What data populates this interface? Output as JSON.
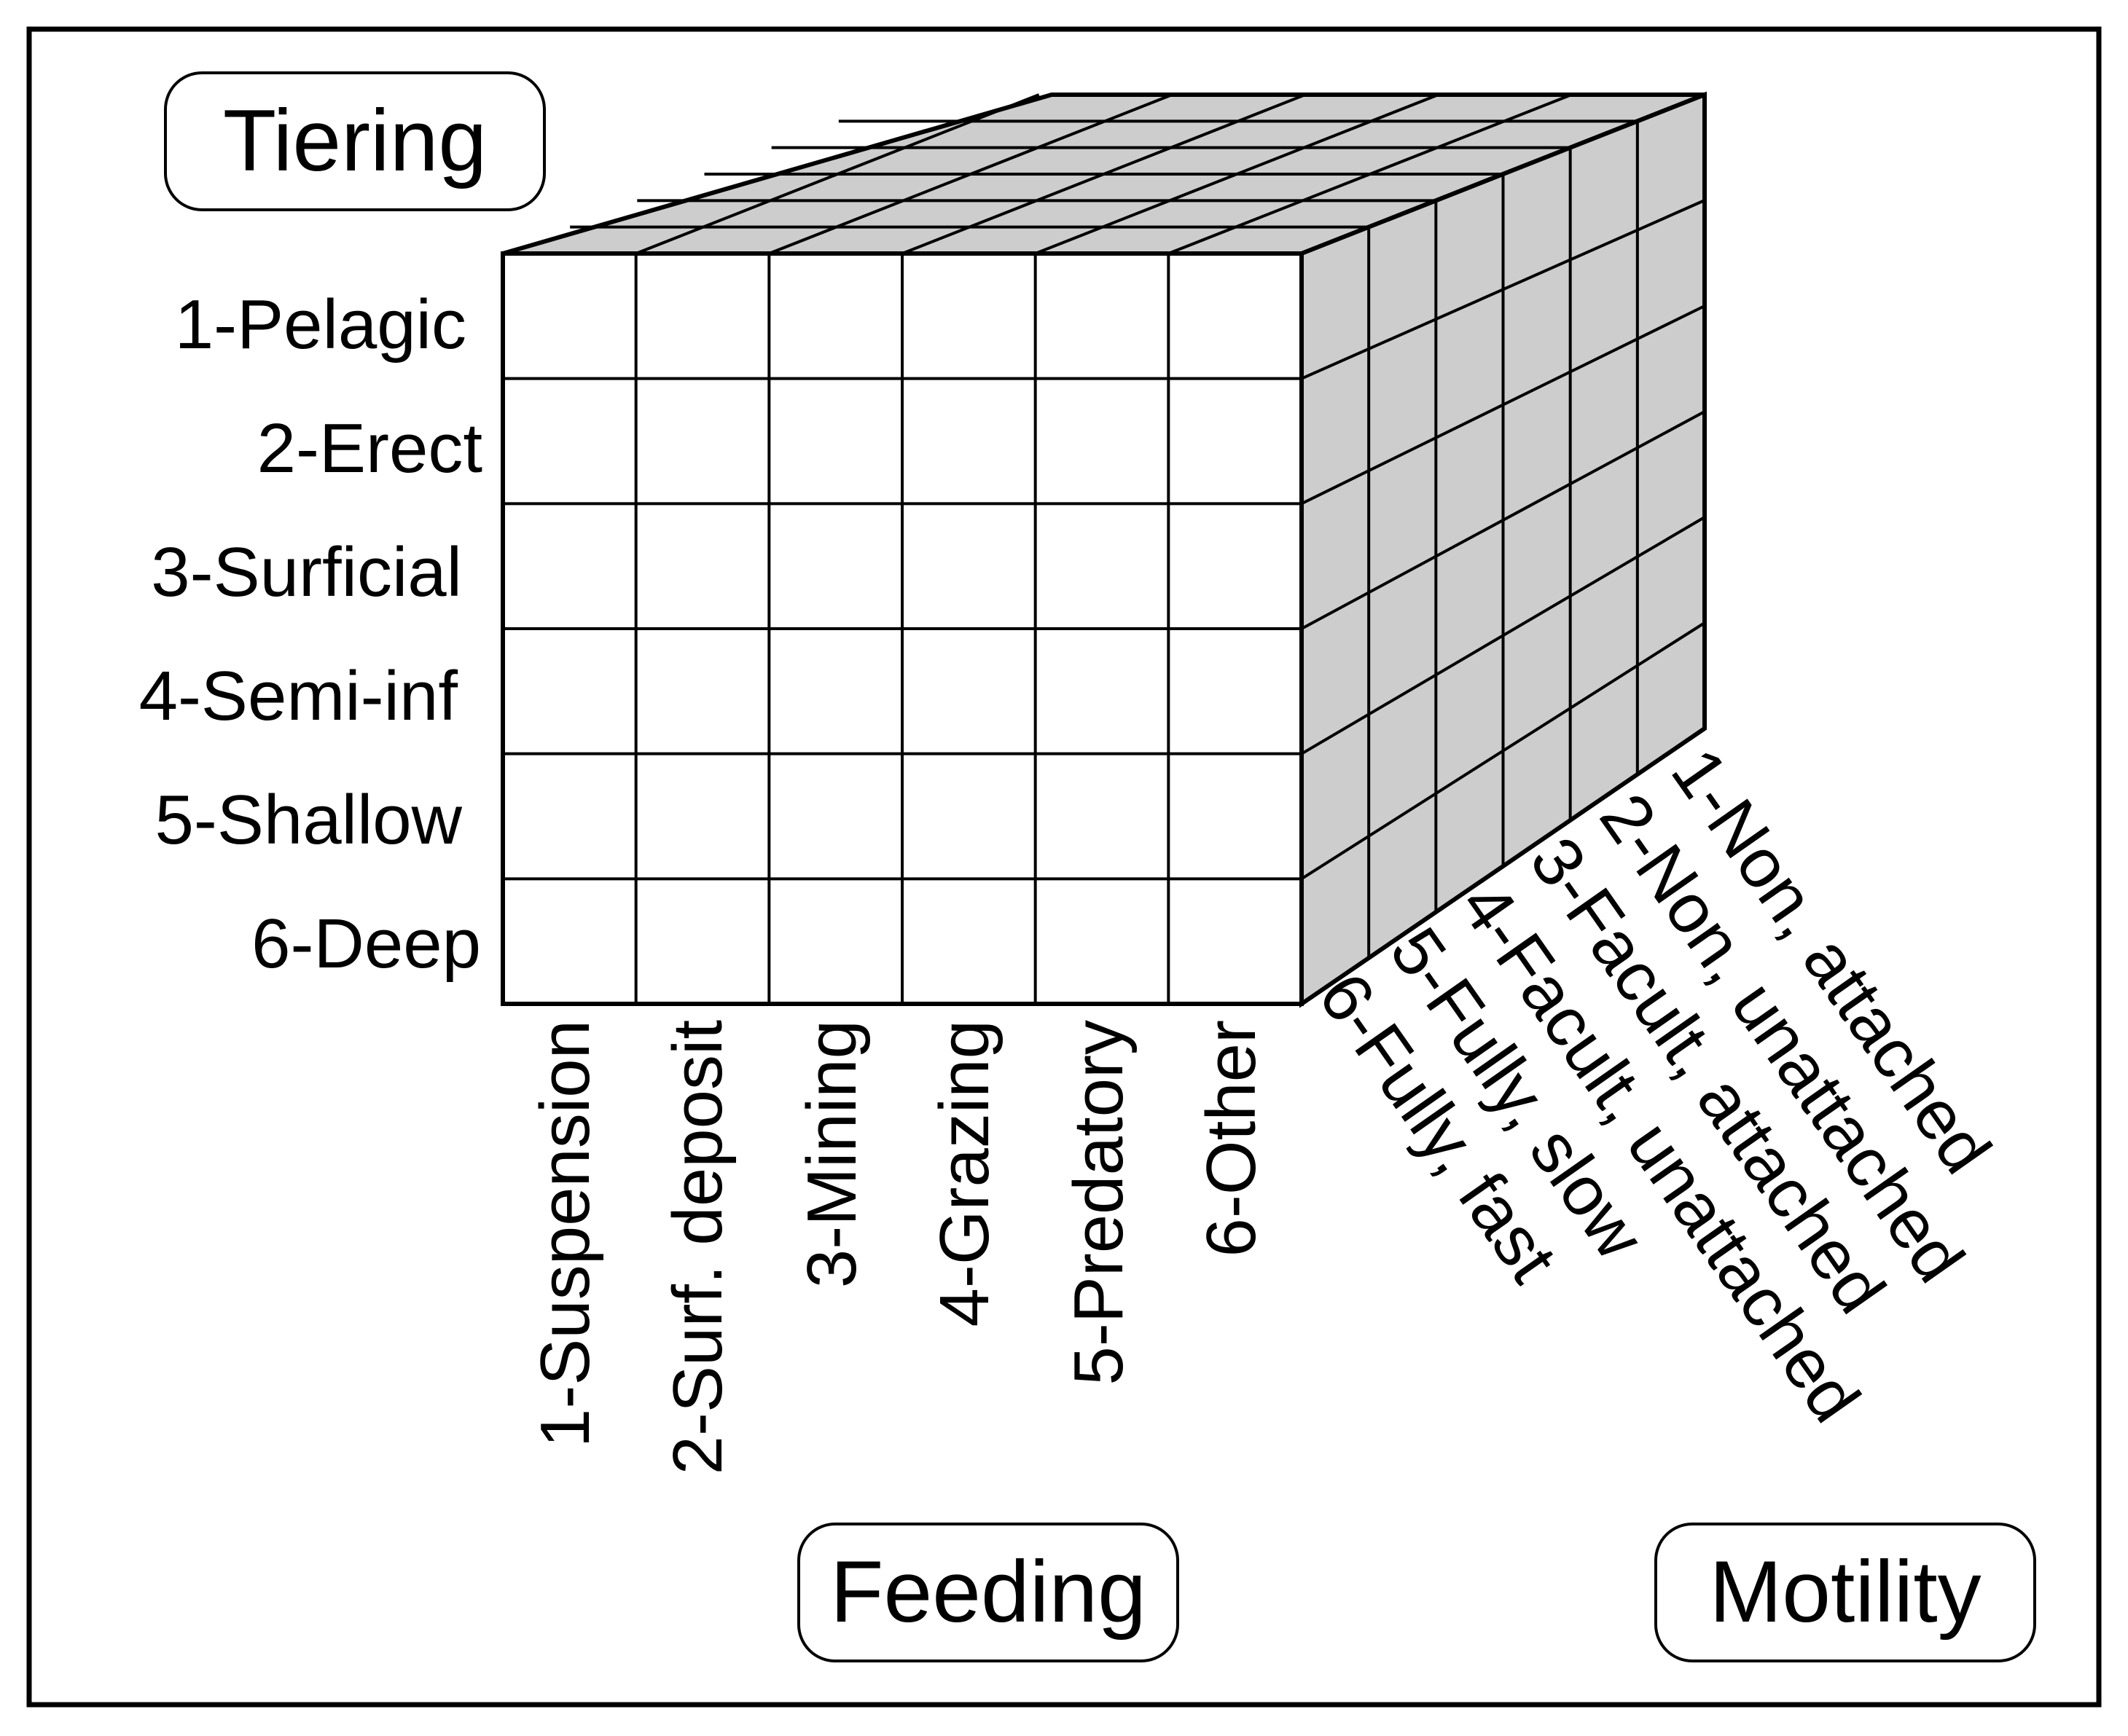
{
  "diagram": {
    "axes": {
      "tiering": {
        "title": "Tiering",
        "categories": [
          "1-Pelagic",
          "2-Erect",
          "3-Surficial",
          "4-Semi-inf",
          "5-Shallow",
          "6-Deep"
        ]
      },
      "feeding": {
        "title": "Feeding",
        "categories": [
          "1-Suspension",
          "2-Surf. deposit",
          "3-Mining",
          "4-Grazing",
          "5-Predatory",
          "6-Other"
        ]
      },
      "motility": {
        "title": "Motility",
        "categories": [
          "1-Non, attached",
          "2-Non, unattached",
          "3-Facult, attached",
          "4-Facult, unattached",
          "5-Fully, slow",
          "6-Fully, fast"
        ]
      }
    },
    "colors": {
      "front_face": "#ffffff",
      "shaded_faces": "#cdcdcd",
      "lines": "#000000"
    }
  }
}
